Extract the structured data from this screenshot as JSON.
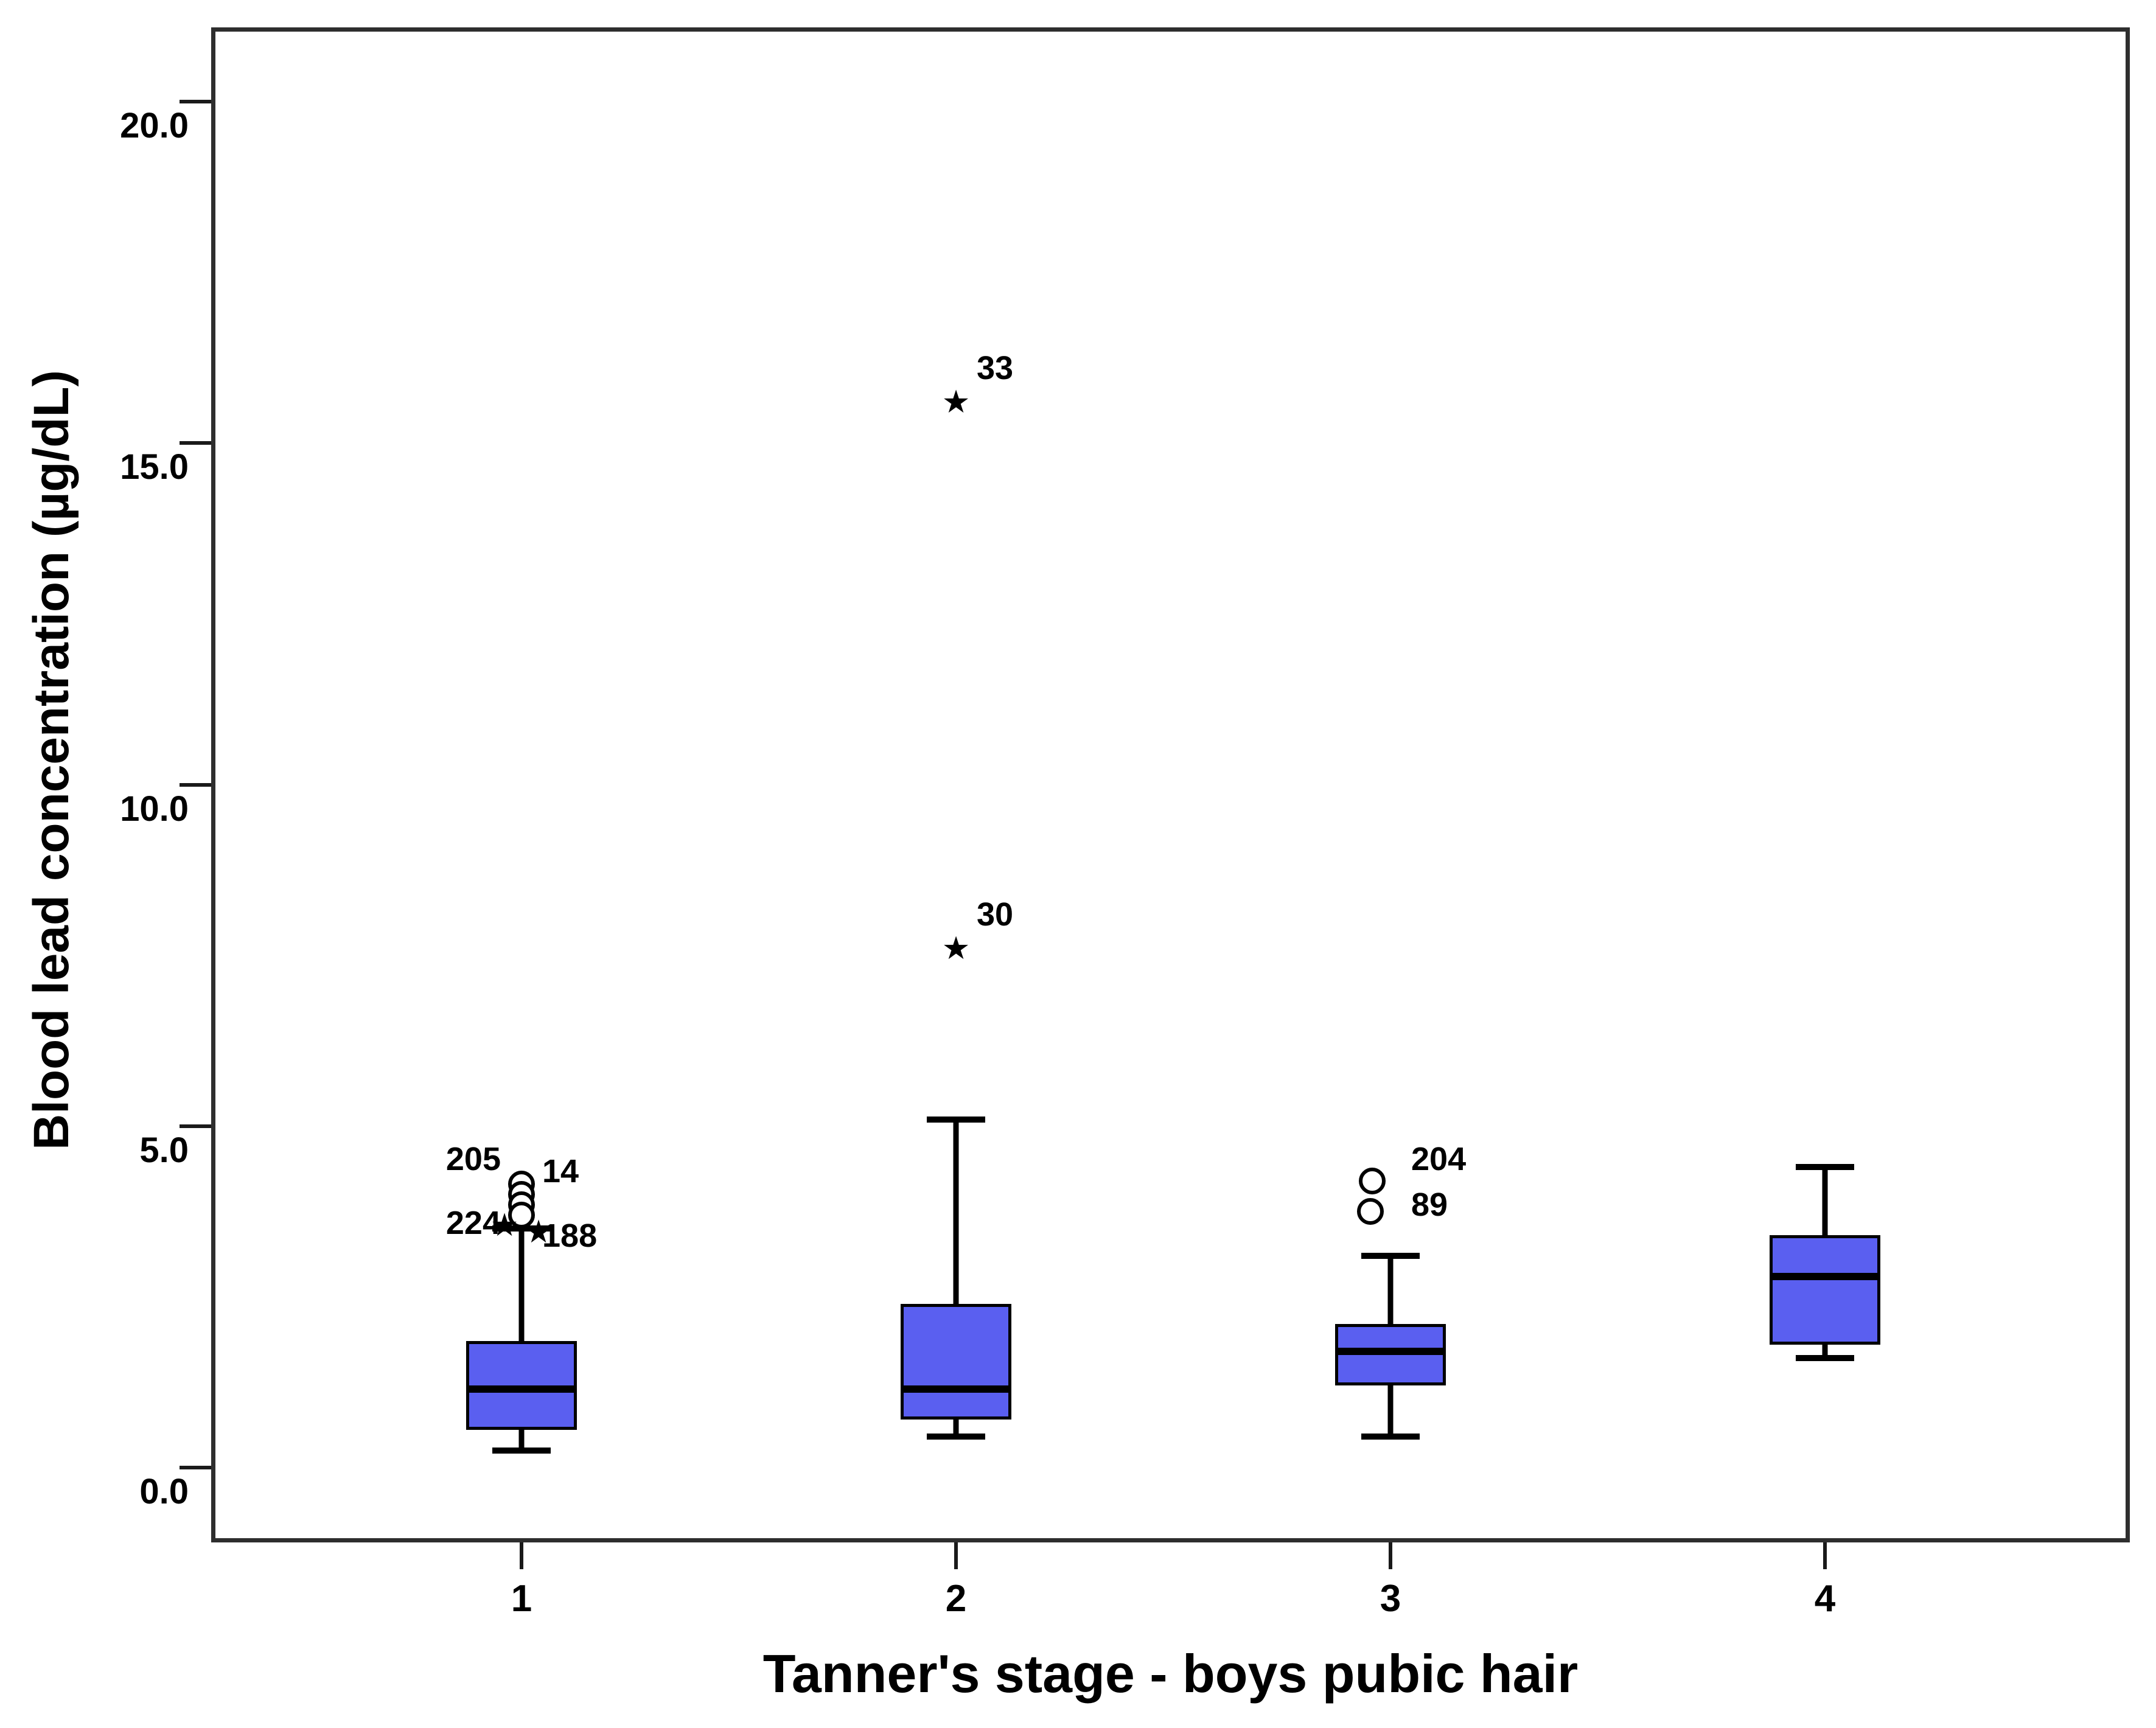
{
  "figure": {
    "background": "#ffffff",
    "box_fill_color": "#5a5ff0",
    "line_color": "#000000",
    "frame_color": "#2e2e2e"
  },
  "chart_data": {
    "type": "boxplot",
    "xlabel": "Tanner's stage - boys pubic hair",
    "ylabel": "Blood lead concentration (µg/dL)",
    "ylim": [
      0,
      20
    ],
    "grid": false,
    "legend": false,
    "y_ticks": [
      {
        "value": 0,
        "label": "0.0"
      },
      {
        "value": 5,
        "label": "5.0"
      },
      {
        "value": 10,
        "label": "10.0"
      },
      {
        "value": 15,
        "label": "15.0"
      },
      {
        "value": 20,
        "label": "20.0"
      }
    ],
    "categories": [
      "1",
      "2",
      "3",
      "4"
    ],
    "series": [
      {
        "category": "1",
        "whisker_low": 0.25,
        "q1": 0.55,
        "median": 1.15,
        "q3": 1.85,
        "whisker_high": 3.5,
        "outliers": [
          {
            "type": "circle",
            "value": 4.15,
            "dx": 0
          },
          {
            "type": "circle",
            "value": 4.0,
            "dx": 0
          },
          {
            "type": "circle",
            "value": 3.85,
            "dx": 0
          },
          {
            "type": "circle",
            "value": 3.7,
            "dx": 0
          },
          {
            "type": "star",
            "value": 3.55,
            "dx": -28
          },
          {
            "type": "star",
            "value": 3.45,
            "dx": 28
          }
        ],
        "point_labels": [
          {
            "text": "205",
            "value": 4.52,
            "side": "left"
          },
          {
            "text": "14",
            "value": 4.34,
            "side": "right"
          },
          {
            "text": "224",
            "value": 3.58,
            "side": "left"
          },
          {
            "text": "188",
            "value": 3.39,
            "side": "right"
          }
        ]
      },
      {
        "category": "2",
        "whisker_low": 0.45,
        "q1": 0.7,
        "median": 1.15,
        "q3": 2.4,
        "whisker_high": 5.1,
        "outliers": [
          {
            "type": "star",
            "value": 15.6,
            "dx": 0
          },
          {
            "type": "star",
            "value": 7.6,
            "dx": 0
          }
        ],
        "point_labels": [
          {
            "text": "33",
            "value": 16.1,
            "side": "right"
          },
          {
            "text": "30",
            "value": 8.1,
            "side": "right"
          }
        ]
      },
      {
        "category": "3",
        "whisker_low": 0.45,
        "q1": 1.2,
        "median": 1.7,
        "q3": 2.1,
        "whisker_high": 3.1,
        "outliers": [
          {
            "type": "circle",
            "value": 4.2,
            "dx": -30
          },
          {
            "type": "circle",
            "value": 3.75,
            "dx": -33
          }
        ],
        "point_labels": [
          {
            "text": "204",
            "value": 4.52,
            "side": "right"
          },
          {
            "text": "89",
            "value": 3.85,
            "side": "right"
          }
        ]
      },
      {
        "category": "4",
        "whisker_low": 1.6,
        "q1": 1.8,
        "median": 2.8,
        "q3": 3.4,
        "whisker_high": 4.4,
        "outliers": [],
        "point_labels": []
      }
    ]
  }
}
